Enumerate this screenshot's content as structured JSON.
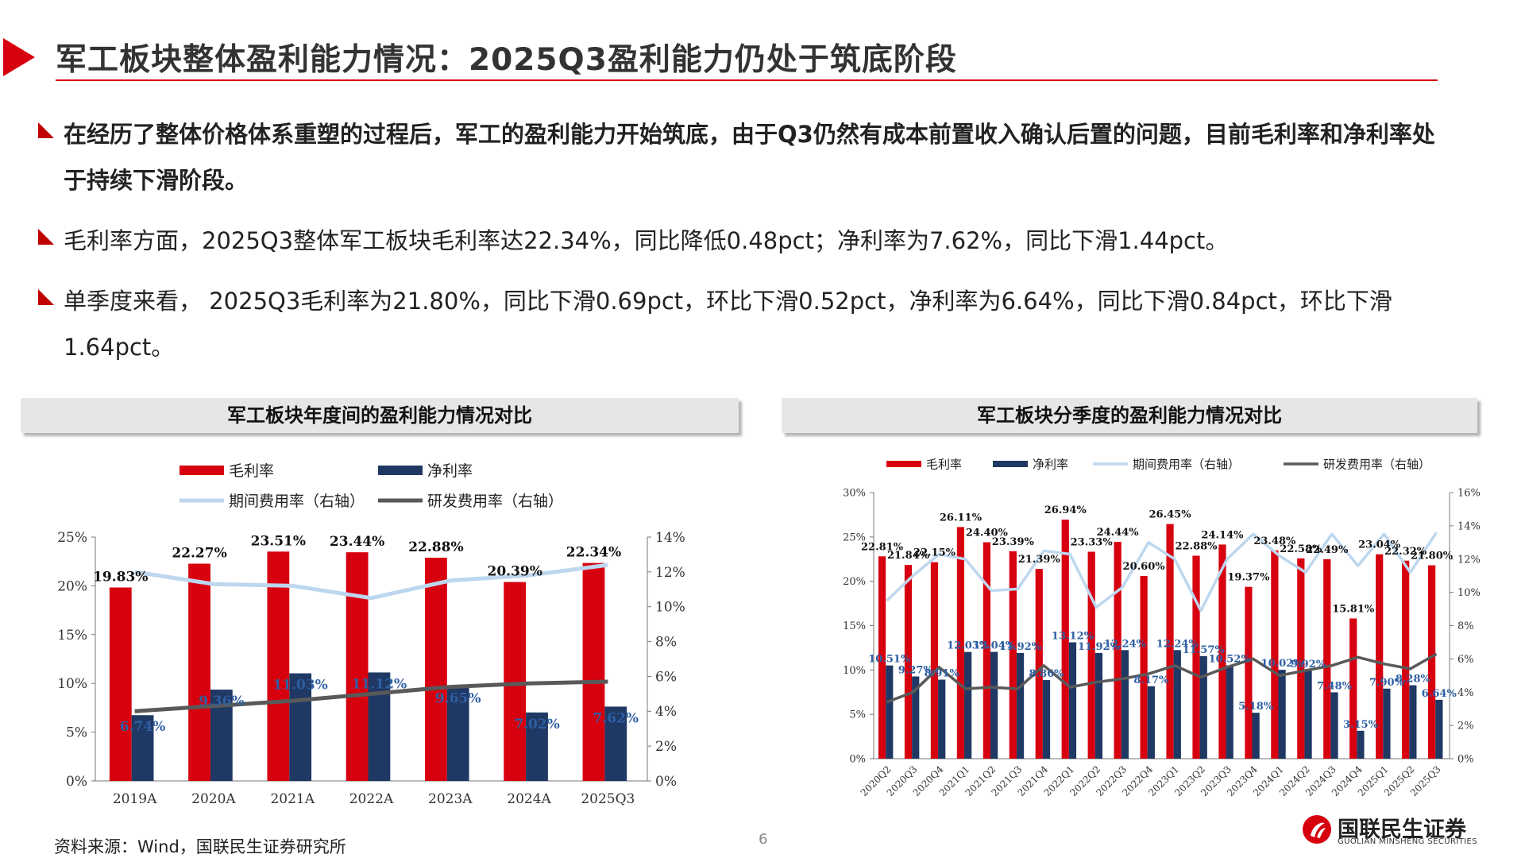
{
  "header": {
    "title": "军工板块整体盈利能力情况：2025Q3盈利能力仍处于筑底阶段"
  },
  "bullets": [
    {
      "text": "在经历了整体价格体系重塑的过程后，军工的盈利能力开始筑底，由于Q3仍然有成本前置收入确认后置的问题，目前毛利率和净利率处于持续下滑阶段。"
    },
    {
      "text": "毛利率方面，2025Q3整体军工板块毛利率达22.34%，同比降低0.48pct；净利率为7.62%，同比下滑1.44pct。"
    },
    {
      "text": "单季度来看， 2025Q3毛利率为21.80%，同比下滑0.69pct，环比下滑0.52pct，净利率为6.64%，同比下滑0.84pct，环比下滑1.64pct。"
    }
  ],
  "charts_meta": [
    {
      "header": "军工板块年度间的盈利能力情况对比"
    },
    {
      "header": "军工板块分季度的盈利能力情况对比"
    }
  ],
  "chart_data": [
    {
      "type": "bar",
      "categories": [
        "2019A",
        "2020A",
        "2021A",
        "2022A",
        "2023A",
        "2024A",
        "2025Q3"
      ],
      "series": [
        {
          "name": "毛利率",
          "type": "bar",
          "axis": "left",
          "color": "#d7000f",
          "values": [
            19.83,
            22.27,
            23.51,
            23.44,
            22.88,
            20.39,
            22.34
          ],
          "labels": [
            "19.83%",
            "22.27%",
            "23.51%",
            "23.44%",
            "22.88%",
            "20.39%",
            "22.34%"
          ]
        },
        {
          "name": "净利率",
          "type": "bar",
          "axis": "left",
          "color": "#1f3864",
          "values": [
            6.74,
            9.36,
            11.03,
            11.12,
            9.65,
            7.02,
            7.62
          ],
          "labels": [
            "6.74%",
            "9.36%",
            "11.03%",
            "11.12%",
            "9.65%",
            "7.02%",
            "7.62%"
          ]
        },
        {
          "name": "期间费用率（右轴）",
          "type": "line",
          "axis": "right",
          "color": "#bdd7ee",
          "values": [
            12.0,
            11.3,
            11.2,
            10.5,
            11.5,
            11.8,
            12.4
          ]
        },
        {
          "name": "研发费用率（右轴）",
          "type": "line",
          "axis": "right",
          "color": "#595959",
          "values": [
            4.0,
            4.3,
            4.6,
            5.0,
            5.4,
            5.6,
            5.7
          ]
        }
      ],
      "left_axis": {
        "min": 0,
        "max": 25,
        "step": 5,
        "tick_labels": [
          "0%",
          "5%",
          "10%",
          "15%",
          "20%",
          "25%"
        ]
      },
      "right_axis": {
        "min": 0,
        "max": 14,
        "step": 2,
        "tick_labels": [
          "0%",
          "2%",
          "4%",
          "6%",
          "8%",
          "10%",
          "12%",
          "14%"
        ]
      },
      "legend": "top",
      "grid": false
    },
    {
      "type": "bar",
      "categories": [
        "2020Q2",
        "2020Q3",
        "2020Q4",
        "2021Q1",
        "2021Q2",
        "2021Q3",
        "2021Q4",
        "2022Q1",
        "2022Q2",
        "2022Q3",
        "2022Q4",
        "2023Q1",
        "2023Q2",
        "2023Q3",
        "2023Q4",
        "2024Q1",
        "2024Q2",
        "2024Q3",
        "2024Q4",
        "2025Q1",
        "2025Q2",
        "2025Q3"
      ],
      "series": [
        {
          "name": "毛利率",
          "type": "bar",
          "axis": "left",
          "color": "#d7000f",
          "values": [
            22.81,
            21.84,
            22.15,
            26.11,
            24.4,
            23.39,
            21.39,
            26.94,
            23.33,
            24.44,
            20.6,
            26.45,
            22.88,
            24.14,
            19.37,
            23.48,
            22.58,
            22.49,
            15.81,
            23.04,
            22.32,
            21.8
          ],
          "labels": [
            "22.81%",
            "21.84%",
            "22.15%",
            "26.11%",
            "24.40%",
            "23.39%",
            "21.39%",
            "26.94%",
            "23.33%",
            "24.44%",
            "20.60%",
            "26.45%",
            "22.88%",
            "24.14%",
            "19.37%",
            "23.48%",
            "22.58%",
            "22.49%",
            "15.81%",
            "23.04%",
            "22.32%",
            "21.80%"
          ]
        },
        {
          "name": "净利率",
          "type": "bar",
          "axis": "left",
          "color": "#1f3864",
          "values": [
            10.51,
            9.27,
            8.91,
            12.03,
            12.04,
            11.92,
            8.86,
            13.12,
            11.92,
            12.24,
            8.17,
            12.24,
            11.57,
            10.52,
            5.18,
            10.02,
            9.92,
            7.48,
            3.15,
            7.9,
            8.28,
            6.64
          ],
          "labels": [
            "10.51%",
            "9.27%",
            "8.91%",
            "12.03%",
            "12.04%",
            "11.92%",
            "8.86%",
            "13.12%",
            "11.92%",
            "12.24%",
            "8.17%",
            "12.24%",
            "11.57%",
            "10.52%",
            "5.18%",
            "10.02%",
            "9.92%",
            "7.48%",
            "3.15%",
            "7.90%",
            "8.28%",
            "6.64%"
          ]
        },
        {
          "name": "期间费用率（右轴）",
          "type": "line",
          "axis": "right",
          "color": "#bdd7ee",
          "values": [
            9.5,
            11.0,
            12.3,
            12.0,
            10.1,
            10.2,
            12.5,
            12.3,
            9.1,
            10.3,
            13.0,
            12.0,
            8.9,
            12.0,
            13.5,
            12.2,
            11.2,
            13.5,
            11.6,
            13.5,
            11.2,
            13.6
          ]
        },
        {
          "name": "研发费用率（右轴）",
          "type": "line",
          "axis": "right",
          "color": "#595959",
          "values": [
            3.4,
            4.0,
            5.5,
            4.2,
            4.3,
            4.2,
            5.6,
            4.3,
            4.6,
            4.8,
            5.1,
            5.6,
            4.9,
            5.5,
            6.0,
            5.0,
            5.3,
            5.6,
            6.1,
            5.7,
            5.4,
            6.3
          ]
        }
      ],
      "left_axis": {
        "min": 0,
        "max": 30,
        "step": 5,
        "tick_labels": [
          "0%",
          "5%",
          "10%",
          "15%",
          "20%",
          "25%",
          "30%"
        ]
      },
      "right_axis": {
        "min": 0,
        "max": 16,
        "step": 2,
        "tick_labels": [
          "0%",
          "2%",
          "4%",
          "6%",
          "8%",
          "10%",
          "12%",
          "14%",
          "16%"
        ]
      },
      "legend": "top",
      "grid": false
    }
  ],
  "footer": {
    "source": "资料来源：Wind，国联民生证券研究所",
    "page": "6",
    "logo_cn": "国联民生证券",
    "logo_en": "GUOLIAN MINSHENG SECURITIES"
  },
  "colors": {
    "accent": "#d7000f",
    "navy": "#1f3864",
    "header_bg": "#e6e6e6"
  }
}
